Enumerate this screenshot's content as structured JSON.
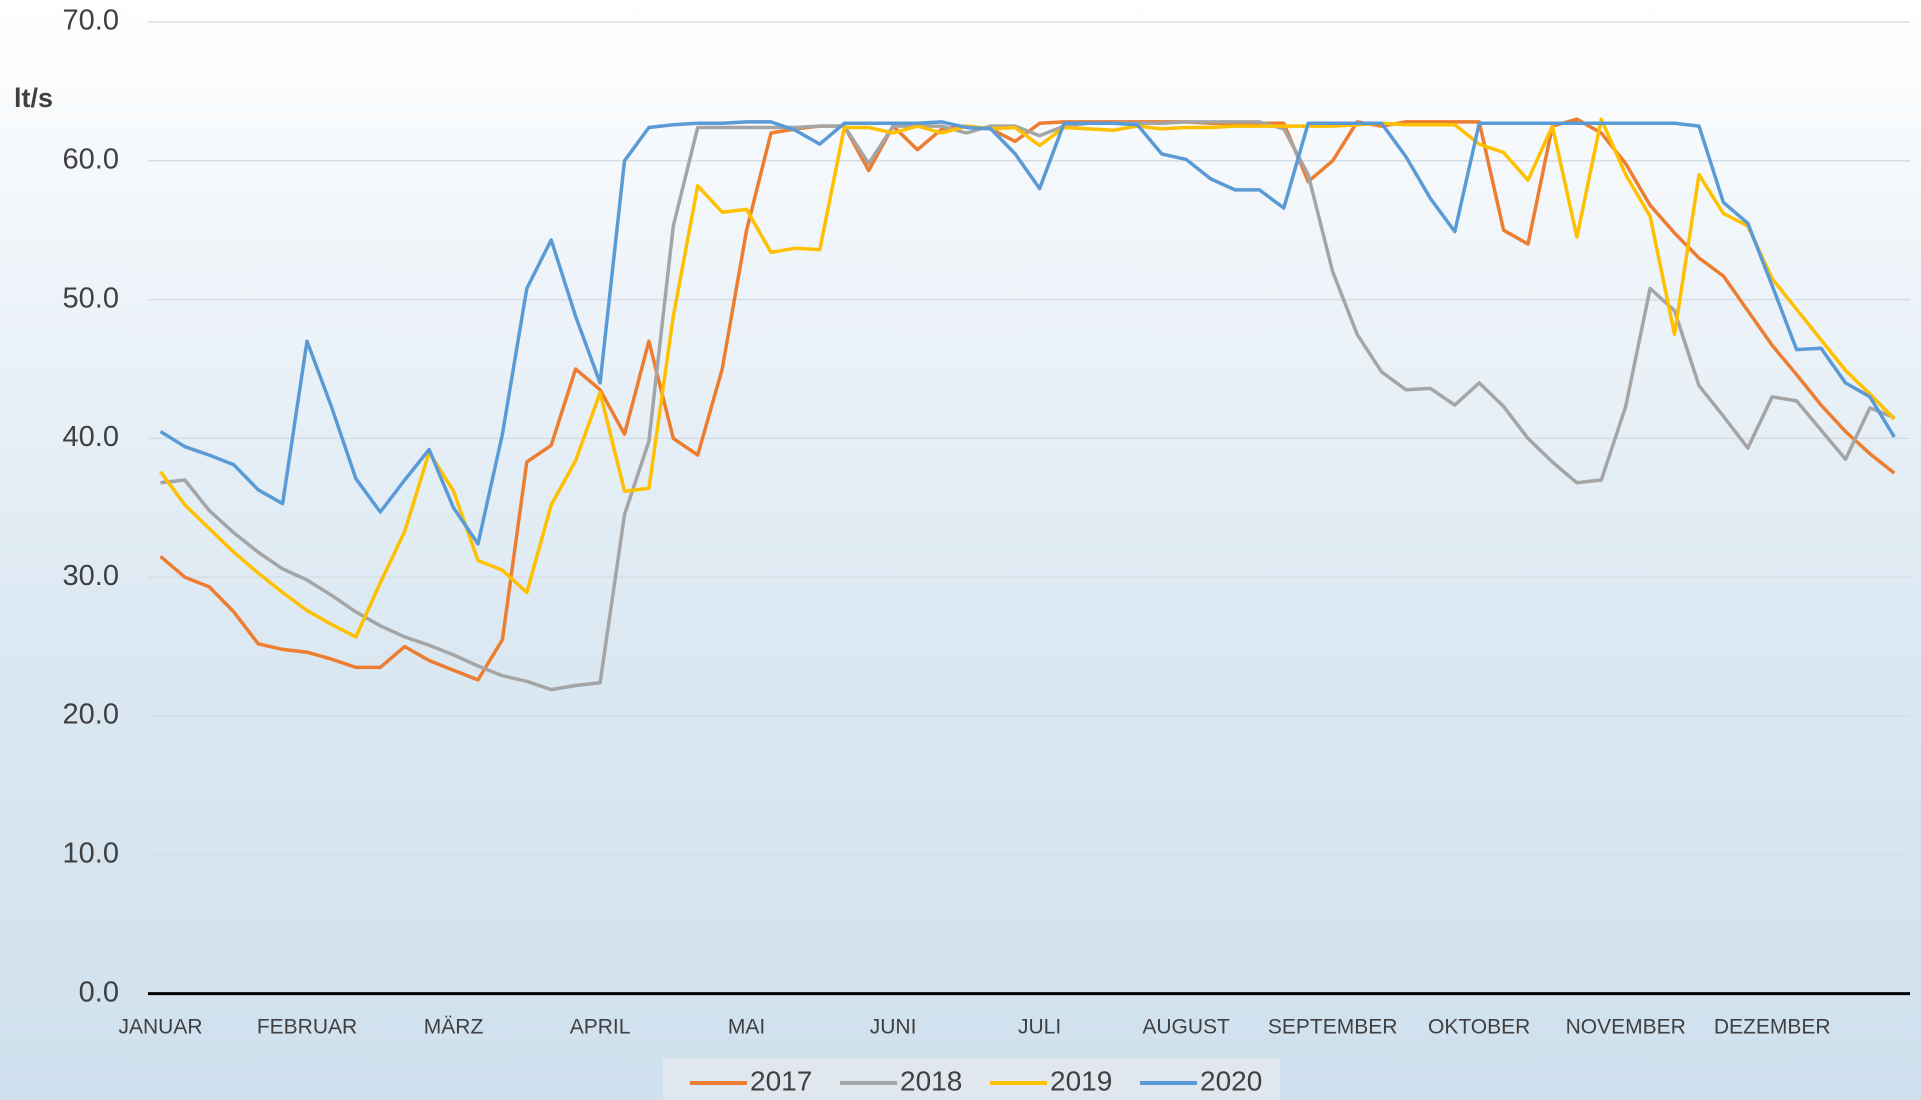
{
  "chart_data": {
    "type": "line",
    "y_label": "lt/s",
    "categories": [
      "JANUAR",
      null,
      null,
      null,
      null,
      null,
      "FEBRUAR",
      null,
      null,
      null,
      null,
      null,
      "MÄRZ",
      null,
      null,
      null,
      null,
      null,
      "APRIL",
      null,
      null,
      null,
      null,
      null,
      "MAI",
      null,
      null,
      null,
      null,
      null,
      "JUNI",
      null,
      null,
      null,
      null,
      null,
      "JULI",
      null,
      null,
      null,
      null,
      null,
      "AUGUST",
      null,
      null,
      null,
      null,
      null,
      "SEPTEMBER",
      null,
      null,
      null,
      null,
      null,
      "OKTOBER",
      null,
      null,
      null,
      null,
      null,
      "NOVEMBER",
      null,
      null,
      null,
      null,
      null,
      "DEZEMBER",
      null,
      null,
      null,
      null,
      null
    ],
    "ylim": [
      0,
      70
    ],
    "yticks": [
      {
        "value": 0,
        "label": "0.0"
      },
      {
        "value": 10,
        "label": "10.0"
      },
      {
        "value": 20,
        "label": "20.0"
      },
      {
        "value": 30,
        "label": "30.0"
      },
      {
        "value": 40,
        "label": "40.0"
      },
      {
        "value": 50,
        "label": "50.0"
      },
      {
        "value": 60,
        "label": "60.0"
      },
      {
        "value": 70,
        "label": "70.0"
      }
    ],
    "grid": true,
    "legend": "bottom",
    "series": [
      {
        "name": "2017",
        "color": "#ed7d31",
        "values": [
          31.5,
          30.0,
          29.3,
          27.5,
          25.2,
          24.8,
          24.6,
          24.1,
          23.5,
          23.5,
          25.0,
          24.0,
          23.3,
          22.6,
          25.5,
          38.3,
          39.5,
          45.0,
          43.5,
          40.3,
          47.0,
          40.0,
          38.8,
          45.0,
          55.0,
          62.0,
          62.3,
          62.5,
          62.5,
          59.3,
          62.5,
          60.8,
          62.3,
          62.5,
          62.3,
          61.4,
          62.7,
          62.8,
          62.8,
          62.8,
          62.8,
          62.8,
          62.8,
          62.7,
          62.7,
          62.7,
          62.7,
          58.5,
          60.0,
          62.8,
          62.5,
          62.8,
          62.8,
          62.8,
          62.8,
          55.0,
          54.0,
          62.5,
          63.0,
          62.0,
          59.8,
          56.8,
          54.8,
          53.0,
          51.7,
          49.2,
          46.7,
          44.6,
          42.4,
          40.5,
          38.9,
          37.5
        ]
      },
      {
        "name": "2018",
        "color": "#a5a5a5",
        "values": [
          36.8,
          37.0,
          34.8,
          33.2,
          31.8,
          30.6,
          29.8,
          28.7,
          27.5,
          26.5,
          25.7,
          25.1,
          24.4,
          23.6,
          22.9,
          22.5,
          21.9,
          22.2,
          22.4,
          34.5,
          39.8,
          55.3,
          62.4,
          62.4,
          62.4,
          62.4,
          62.4,
          62.5,
          62.5,
          59.8,
          62.5,
          62.5,
          62.5,
          62.0,
          62.5,
          62.5,
          61.8,
          62.5,
          62.7,
          62.7,
          62.7,
          62.7,
          62.8,
          62.8,
          62.8,
          62.8,
          62.3,
          59.0,
          52.0,
          47.5,
          44.8,
          43.5,
          43.6,
          42.4,
          44.0,
          42.3,
          40.0,
          38.3,
          36.8,
          37.0,
          42.3,
          50.8,
          49.2,
          43.8,
          41.6,
          39.3,
          43.0,
          42.7,
          40.6,
          38.5,
          42.2,
          41.5
        ]
      },
      {
        "name": "2019",
        "color": "#ffc000",
        "values": [
          37.6,
          35.2,
          33.5,
          31.8,
          30.3,
          28.9,
          27.6,
          26.6,
          25.7,
          29.6,
          33.3,
          39.0,
          36.2,
          31.2,
          30.5,
          28.9,
          35.2,
          38.4,
          43.3,
          36.2,
          36.4,
          48.8,
          58.2,
          56.3,
          56.5,
          53.4,
          53.7,
          53.6,
          62.4,
          62.4,
          62.0,
          62.5,
          62.0,
          62.5,
          62.3,
          62.4,
          61.1,
          62.4,
          62.3,
          62.2,
          62.5,
          62.3,
          62.4,
          62.4,
          62.5,
          62.5,
          62.5,
          62.5,
          62.5,
          62.6,
          62.7,
          62.6,
          62.6,
          62.6,
          61.2,
          60.6,
          58.6,
          62.5,
          54.5,
          63.0,
          59.0,
          56.0,
          47.5,
          59.0,
          56.2,
          55.3,
          51.5,
          49.3,
          47.1,
          44.9,
          43.2,
          41.4
        ]
      },
      {
        "name": "2020",
        "color": "#5b9bd5",
        "values": [
          40.5,
          39.4,
          38.8,
          38.1,
          36.3,
          35.3,
          47.0,
          42.3,
          37.1,
          34.7,
          37.0,
          39.2,
          35.0,
          32.4,
          40.3,
          50.8,
          54.3,
          48.8,
          44.0,
          60.0,
          62.4,
          62.6,
          62.7,
          62.7,
          62.8,
          62.8,
          62.2,
          61.2,
          62.7,
          62.7,
          62.7,
          62.7,
          62.8,
          62.4,
          62.3,
          60.5,
          58.0,
          62.7,
          62.7,
          62.7,
          62.6,
          60.5,
          60.1,
          58.7,
          57.9,
          57.9,
          56.6,
          62.7,
          62.7,
          62.7,
          62.7,
          60.3,
          57.3,
          54.9,
          62.7,
          62.7,
          62.7,
          62.7,
          62.7,
          62.7,
          62.7,
          62.7,
          62.7,
          62.5,
          57.0,
          55.5,
          51.0,
          46.4,
          46.5,
          44.0,
          43.0,
          40.1
        ]
      }
    ]
  }
}
